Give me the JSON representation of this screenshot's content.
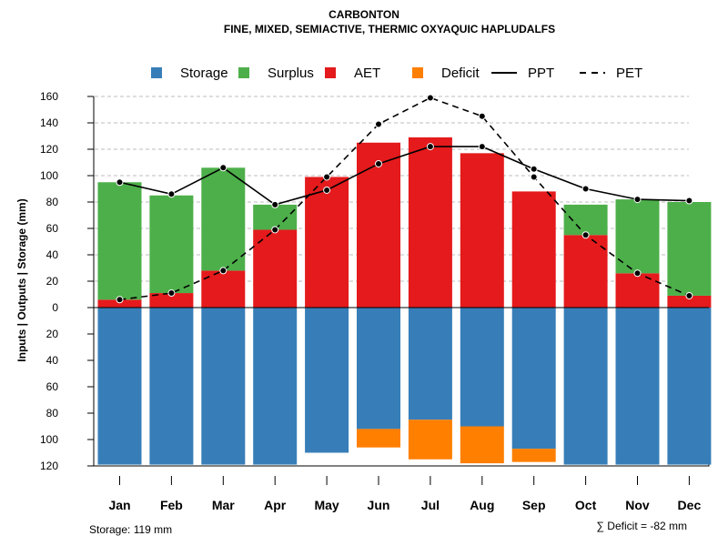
{
  "chart_data": {
    "type": "bar",
    "title": "CARBONTON",
    "subtitle": "FINE, MIXED, SEMIACTIVE, THERMIC OXYAQUIC HAPLUDALFS",
    "ylabel": "Inputs | Outputs | Storage    (mm)",
    "ylim": [
      -120,
      160
    ],
    "yticks": [
      160,
      140,
      120,
      100,
      80,
      60,
      40,
      20,
      0,
      -20,
      -40,
      -60,
      -80,
      -100,
      -120
    ],
    "ytick_labels": [
      "160",
      "140",
      "120",
      "100",
      "80",
      "60",
      "40",
      "20",
      "0",
      "20",
      "40",
      "60",
      "80",
      "100",
      "120"
    ],
    "categories": [
      "Jan",
      "Feb",
      "Mar",
      "Apr",
      "May",
      "Jun",
      "Jul",
      "Aug",
      "Sep",
      "Oct",
      "Nov",
      "Dec"
    ],
    "grid": true,
    "legend": [
      "Storage",
      "Surplus",
      "AET",
      "Deficit",
      "PPT",
      "PET"
    ],
    "colors": {
      "storage": "#377EB8",
      "surplus": "#4DAF4A",
      "aet": "#E41A1C",
      "deficit": "#FF7F00",
      "line": "#000000"
    },
    "series": [
      {
        "name": "AET",
        "values": [
          6,
          11,
          28,
          59,
          99,
          125,
          129,
          117,
          88,
          55,
          26,
          9
        ]
      },
      {
        "name": "Surplus",
        "values": [
          89,
          74,
          78,
          19,
          0,
          0,
          0,
          0,
          0,
          23,
          56,
          71
        ]
      },
      {
        "name": "Storage",
        "values": [
          119,
          119,
          119,
          119,
          110,
          92,
          85,
          90,
          107,
          119,
          119,
          119
        ]
      },
      {
        "name": "Deficit",
        "values": [
          0,
          0,
          0,
          0,
          0,
          14,
          30,
          28,
          10,
          0,
          0,
          0
        ]
      },
      {
        "name": "PPT",
        "values": [
          95,
          86,
          106,
          78,
          89,
          109,
          122,
          122,
          105,
          90,
          82,
          81
        ]
      },
      {
        "name": "PET",
        "values": [
          6,
          11,
          28,
          59,
          99,
          139,
          159,
          145,
          99,
          55,
          26,
          9
        ]
      }
    ],
    "storage_note": "Storage: 119 mm",
    "deficit_note": "∑ Deficit = -82 mm"
  }
}
